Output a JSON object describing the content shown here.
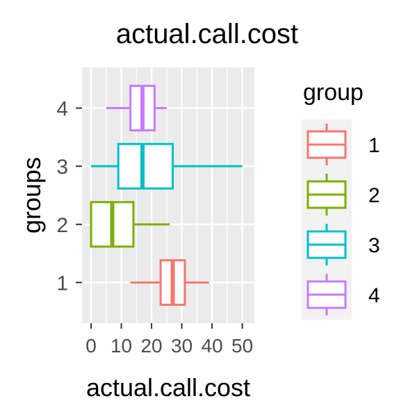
{
  "chart_data": {
    "type": "boxplot",
    "title": "actual.call.cost",
    "xlabel": "actual.call.cost",
    "ylabel": "groups",
    "xlim": [
      -3,
      54
    ],
    "x_ticks": [
      0,
      10,
      20,
      30,
      40,
      50
    ],
    "x_tick_labels": [
      "0",
      "10",
      "20",
      "30",
      "40",
      "50"
    ],
    "categories": [
      "1",
      "2",
      "3",
      "4"
    ],
    "grid": true,
    "legend": {
      "title": "group",
      "placement": "right",
      "entries": [
        "1",
        "2",
        "3",
        "4"
      ]
    },
    "series": [
      {
        "name": "1",
        "color": "#F8766D",
        "whisker_low": 13,
        "q1": 23,
        "median": 27,
        "q3": 31,
        "whisker_high": 39
      },
      {
        "name": "2",
        "color": "#7CAE00",
        "whisker_low": 0,
        "q1": 0,
        "median": 7,
        "q3": 14,
        "whisker_high": 26
      },
      {
        "name": "3",
        "color": "#00BFC4",
        "whisker_low": 0,
        "q1": 9,
        "median": 17,
        "q3": 27,
        "whisker_high": 50
      },
      {
        "name": "4",
        "color": "#C77CFF",
        "whisker_low": 5,
        "q1": 13,
        "median": 17,
        "q3": 21,
        "whisker_high": 25
      }
    ]
  }
}
